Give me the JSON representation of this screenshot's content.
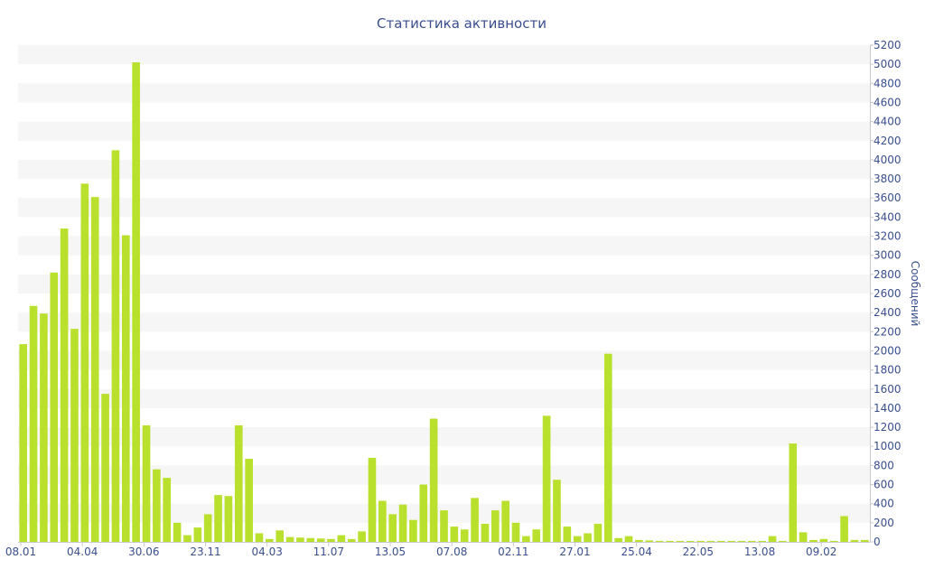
{
  "chart_data": {
    "type": "bar",
    "title": "Статистика активности",
    "ylabel": "Сообщений",
    "xlabel": "",
    "ylim": [
      0,
      5200
    ],
    "y_tick_step": 200,
    "y_axis_position": "right",
    "grid": "alternating horizontal bands",
    "legend": "none",
    "x_tick_labels": [
      {
        "label": "08.01",
        "index": 0
      },
      {
        "label": "04.04",
        "index": 6
      },
      {
        "label": "30.06",
        "index": 12
      },
      {
        "label": "23.11",
        "index": 18
      },
      {
        "label": "04.03",
        "index": 24
      },
      {
        "label": "11.07",
        "index": 30
      },
      {
        "label": "13.05",
        "index": 36
      },
      {
        "label": "07.08",
        "index": 42
      },
      {
        "label": "02.11",
        "index": 48
      },
      {
        "label": "27.01",
        "index": 54
      },
      {
        "label": "25.04",
        "index": 60
      },
      {
        "label": "22.05",
        "index": 66
      },
      {
        "label": "13.08",
        "index": 72
      },
      {
        "label": "09.02",
        "index": 78
      }
    ],
    "values": [
      2070,
      2470,
      2390,
      2820,
      3280,
      2230,
      3750,
      3610,
      1550,
      4100,
      3210,
      5020,
      1220,
      760,
      670,
      200,
      70,
      150,
      290,
      490,
      480,
      1220,
      870,
      90,
      30,
      120,
      50,
      45,
      40,
      35,
      30,
      70,
      30,
      110,
      880,
      430,
      290,
      390,
      230,
      600,
      1290,
      330,
      160,
      130,
      460,
      190,
      330,
      430,
      200,
      60,
      130,
      1320,
      650,
      160,
      60,
      90,
      190,
      1970,
      40,
      60,
      20,
      15,
      10,
      10,
      10,
      10,
      10,
      10,
      10,
      10,
      10,
      10,
      10,
      60,
      10,
      1030,
      100,
      20,
      30,
      10,
      270,
      20,
      20
    ],
    "colors": {
      "bar": "#b8e02c",
      "text": "#3a4f8f",
      "band": "#f6f6f6",
      "axis": "#c9c9c9"
    }
  }
}
